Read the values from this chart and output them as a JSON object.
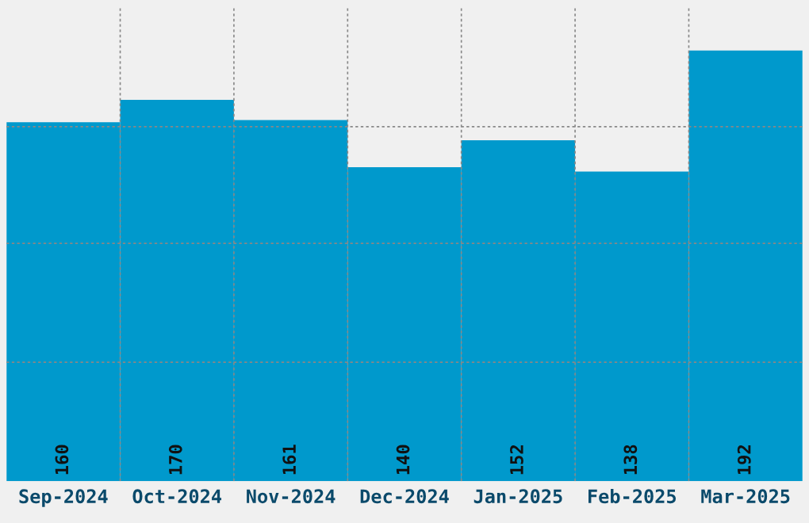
{
  "chart_data": {
    "type": "bar",
    "categories": [
      "Sep-2024",
      "Oct-2024",
      "Nov-2024",
      "Dec-2024",
      "Jan-2025",
      "Feb-2025",
      "Mar-2025"
    ],
    "values": [
      160,
      170,
      161,
      140,
      152,
      138,
      192
    ],
    "color": "#0099cc",
    "ylim": [
      0,
      211
    ],
    "yticks": [
      {
        "value": 53,
        "label": null
      },
      {
        "value": 106,
        "label": null
      },
      {
        "value": 158,
        "label": null
      }
    ],
    "grid": true,
    "data_labels": true,
    "tick_labels": "x"
  }
}
